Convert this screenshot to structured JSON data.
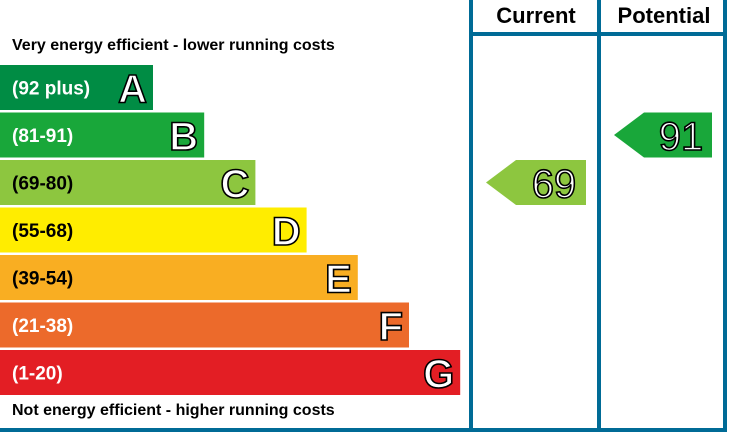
{
  "chart_data": {
    "type": "bar",
    "top_caption": "Very energy efficient - lower running costs",
    "bottom_caption": "Not energy efficient - higher running costs",
    "columns": [
      "Current",
      "Potential"
    ],
    "bands": [
      {
        "letter": "A",
        "range": "(92 plus)",
        "min": 92,
        "max": 100,
        "color": "#008c44"
      },
      {
        "letter": "B",
        "range": "(81-91)",
        "min": 81,
        "max": 91,
        "color": "#19a73a"
      },
      {
        "letter": "C",
        "range": "(69-80)",
        "min": 69,
        "max": 80,
        "color": "#8dc63f"
      },
      {
        "letter": "D",
        "range": "(55-68)",
        "min": 55,
        "max": 68,
        "color": "#ffed00"
      },
      {
        "letter": "E",
        "range": "(39-54)",
        "min": 39,
        "max": 54,
        "color": "#f9ae22"
      },
      {
        "letter": "F",
        "range": "(21-38)",
        "min": 21,
        "max": 38,
        "color": "#ec6a2b"
      },
      {
        "letter": "G",
        "range": "(1-20)",
        "min": 1,
        "max": 20,
        "color": "#e31e24"
      }
    ],
    "current": {
      "value": 69,
      "band": "C",
      "color": "#8dc63f"
    },
    "potential": {
      "value": 91,
      "band": "B",
      "color": "#19a73a"
    },
    "frame_color": "#006b96"
  }
}
